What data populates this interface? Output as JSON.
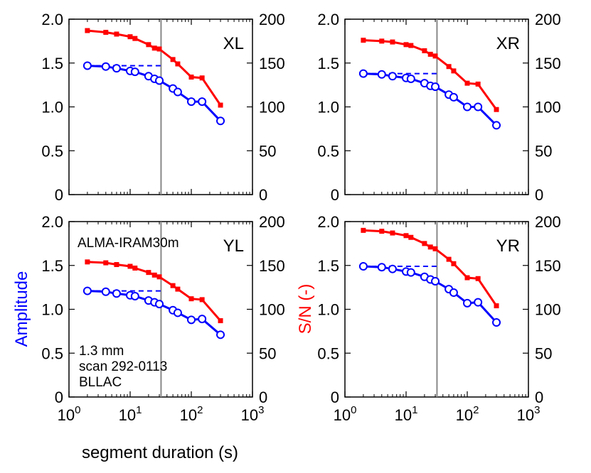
{
  "chart_data": {
    "type": "line",
    "shared_xlabel": "segment duration (s)",
    "shared_left_ylabel": "Amplitude",
    "shared_right_ylabel": "S/N (-)",
    "colors": {
      "amplitude": "#0000ff",
      "snr": "#ff0000",
      "marker_line": "#888888"
    },
    "x_scale": "log",
    "xlim": [
      1,
      1000
    ],
    "x_tick_labels": [
      {
        "base": "10",
        "exp": "0"
      },
      {
        "base": "10",
        "exp": "1"
      },
      {
        "base": "10",
        "exp": "2"
      },
      {
        "base": "10",
        "exp": "3"
      }
    ],
    "left_ylim": [
      0,
      2.0
    ],
    "left_y_tick_labels": [
      "0",
      "0.5",
      "1.0",
      "1.5",
      "2.0"
    ],
    "right_ylim": [
      0,
      200
    ],
    "right_y_tick_labels": [
      "0",
      "50",
      "100",
      "150",
      "200"
    ],
    "vertical_line_x": 32,
    "info_text": [
      "ALMA-IRAM30m",
      "1.3 mm",
      "scan 292-0113",
      "BLLAC"
    ],
    "x": [
      2,
      4,
      6,
      10,
      12,
      20,
      25,
      30,
      50,
      60,
      100,
      150,
      300
    ],
    "panels": [
      {
        "label": "XL",
        "reference_amplitude": 1.47,
        "series": [
          {
            "name": "Amplitude",
            "axis": "left",
            "marker": "open-circle",
            "values": [
              1.47,
              1.46,
              1.44,
              1.41,
              1.4,
              1.35,
              1.32,
              1.3,
              1.21,
              1.17,
              1.06,
              1.06,
              0.84
            ]
          },
          {
            "name": "S/N",
            "axis": "right",
            "marker": "filled-square",
            "values": [
              187,
              185,
              183,
              180,
              178,
              171,
              167,
              166,
              154,
              149,
              134,
              133,
              102
            ]
          }
        ]
      },
      {
        "label": "XR",
        "reference_amplitude": 1.38,
        "series": [
          {
            "name": "Amplitude",
            "axis": "left",
            "marker": "open-circle",
            "values": [
              1.38,
              1.37,
              1.35,
              1.33,
              1.32,
              1.27,
              1.24,
              1.23,
              1.14,
              1.11,
              1.0,
              1.0,
              0.79
            ]
          },
          {
            "name": "S/N",
            "axis": "right",
            "marker": "filled-square",
            "values": [
              176,
              175,
              174,
              171,
              170,
              164,
              160,
              158,
              146,
              141,
              127,
              126,
              97
            ]
          }
        ]
      },
      {
        "label": "YL",
        "reference_amplitude": 1.21,
        "series": [
          {
            "name": "Amplitude",
            "axis": "left",
            "marker": "open-circle",
            "values": [
              1.21,
              1.2,
              1.18,
              1.16,
              1.15,
              1.1,
              1.08,
              1.06,
              0.99,
              0.96,
              0.88,
              0.89,
              0.71
            ]
          },
          {
            "name": "S/N",
            "axis": "right",
            "marker": "filled-square",
            "values": [
              154,
              153,
              151,
              149,
              147,
              142,
              139,
              137,
              127,
              123,
              112,
              111,
              87
            ]
          }
        ]
      },
      {
        "label": "YR",
        "reference_amplitude": 1.49,
        "series": [
          {
            "name": "Amplitude",
            "axis": "left",
            "marker": "open-circle",
            "values": [
              1.49,
              1.48,
              1.46,
              1.43,
              1.42,
              1.37,
              1.34,
              1.32,
              1.23,
              1.19,
              1.07,
              1.08,
              0.85
            ]
          },
          {
            "name": "S/N",
            "axis": "right",
            "marker": "filled-square",
            "values": [
              190,
              189,
              187,
              184,
              182,
              175,
              171,
              169,
              157,
              152,
              136,
              135,
              104
            ]
          }
        ]
      }
    ]
  }
}
